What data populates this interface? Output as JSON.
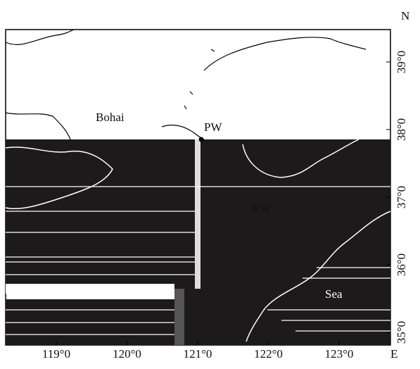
{
  "map": {
    "labels": {
      "north": "N",
      "east": "E",
      "bohai": "Bohai",
      "pw": "PW",
      "rw": "RW",
      "sea": "Sea"
    },
    "longitude_labels": [
      "119°0",
      "120°0",
      "121°0",
      "122°0",
      "123°0"
    ],
    "latitude_labels": [
      "39°0",
      "38°0",
      "37°0",
      "36°0",
      "35°0"
    ]
  }
}
